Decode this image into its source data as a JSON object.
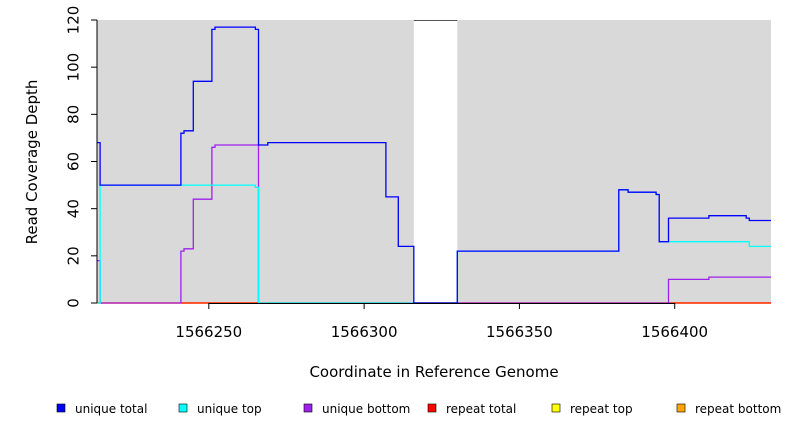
{
  "chart_data": {
    "type": "line",
    "xlabel": "Coordinate in Reference Genome",
    "ylabel": "Read Coverage Depth",
    "xlim": [
      1566214,
      1566431
    ],
    "ylim": [
      0,
      120
    ],
    "x_ticks": [
      1566250,
      1566300,
      1566350,
      1566400
    ],
    "x_tick_labels": [
      "1566250",
      "1566300",
      "1566350",
      "1566400"
    ],
    "y_ticks": [
      0,
      20,
      40,
      60,
      80,
      100,
      120
    ],
    "y_tick_labels": [
      "0",
      "20",
      "40",
      "60",
      "80",
      "100",
      "120"
    ],
    "background_color": "#d9d9d9",
    "gap_region": [
      1566316,
      1566330
    ],
    "grid": false,
    "legend_position": "bottom",
    "series": [
      {
        "name": "unique total",
        "color": "#0000ff",
        "points": [
          [
            1566214,
            68
          ],
          [
            1566215,
            68
          ],
          [
            1566215,
            50
          ],
          [
            1566241,
            50
          ],
          [
            1566241,
            72
          ],
          [
            1566242,
            72
          ],
          [
            1566242,
            73
          ],
          [
            1566245,
            73
          ],
          [
            1566245,
            94
          ],
          [
            1566251,
            94
          ],
          [
            1566251,
            116
          ],
          [
            1566252,
            116
          ],
          [
            1566252,
            117
          ],
          [
            1566265,
            117
          ],
          [
            1566265,
            116
          ],
          [
            1566266,
            116
          ],
          [
            1566266,
            67
          ],
          [
            1566269,
            67
          ],
          [
            1566269,
            68
          ],
          [
            1566307,
            68
          ],
          [
            1566307,
            45
          ],
          [
            1566311,
            45
          ],
          [
            1566311,
            24
          ],
          [
            1566316,
            24
          ],
          [
            1566316,
            0
          ],
          [
            1566330,
            0
          ],
          [
            1566330,
            22
          ],
          [
            1566382,
            22
          ],
          [
            1566382,
            48
          ],
          [
            1566385,
            48
          ],
          [
            1566385,
            47
          ],
          [
            1566394,
            47
          ],
          [
            1566394,
            46
          ],
          [
            1566395,
            46
          ],
          [
            1566395,
            26
          ],
          [
            1566398,
            26
          ],
          [
            1566398,
            36
          ],
          [
            1566411,
            36
          ],
          [
            1566411,
            37
          ],
          [
            1566423,
            37
          ],
          [
            1566423,
            36
          ],
          [
            1566424,
            36
          ],
          [
            1566424,
            35
          ],
          [
            1566431,
            35
          ]
        ]
      },
      {
        "name": "unique top",
        "color": "#00ffff",
        "points": [
          [
            1566214,
            0
          ],
          [
            1566215,
            0
          ],
          [
            1566215,
            50
          ],
          [
            1566265,
            50
          ],
          [
            1566265,
            49
          ],
          [
            1566266,
            49
          ],
          [
            1566266,
            0
          ],
          [
            1566316,
            0
          ],
          [
            1566330,
            0
          ],
          [
            1566330,
            22
          ],
          [
            1566382,
            22
          ],
          [
            1566382,
            48
          ],
          [
            1566385,
            48
          ],
          [
            1566385,
            47
          ],
          [
            1566394,
            47
          ],
          [
            1566394,
            46
          ],
          [
            1566395,
            46
          ],
          [
            1566395,
            26
          ],
          [
            1566424,
            26
          ],
          [
            1566424,
            24
          ],
          [
            1566431,
            24
          ]
        ]
      },
      {
        "name": "unique bottom",
        "color": "#a020f0",
        "points": [
          [
            1566214,
            18
          ],
          [
            1566215,
            18
          ],
          [
            1566215,
            0
          ],
          [
            1566241,
            0
          ],
          [
            1566241,
            22
          ],
          [
            1566242,
            22
          ],
          [
            1566242,
            23
          ],
          [
            1566245,
            23
          ],
          [
            1566245,
            44
          ],
          [
            1566251,
            44
          ],
          [
            1566251,
            66
          ],
          [
            1566252,
            66
          ],
          [
            1566252,
            67
          ],
          [
            1566266,
            67
          ],
          [
            1566266,
            0
          ],
          [
            1566316,
            0
          ],
          [
            1566398,
            0
          ],
          [
            1566398,
            10
          ],
          [
            1566411,
            10
          ],
          [
            1566411,
            11
          ],
          [
            1566431,
            11
          ]
        ]
      },
      {
        "name": "repeat total",
        "color": "#ff0000",
        "points": [
          [
            1566214,
            0
          ],
          [
            1566431,
            0
          ]
        ]
      },
      {
        "name": "repeat top",
        "color": "#ffff00",
        "points": [
          [
            1566214,
            0
          ],
          [
            1566431,
            0
          ]
        ]
      },
      {
        "name": "repeat bottom",
        "color": "#ffa500",
        "points": [
          [
            1566214,
            0
          ],
          [
            1566431,
            0
          ]
        ]
      }
    ]
  }
}
